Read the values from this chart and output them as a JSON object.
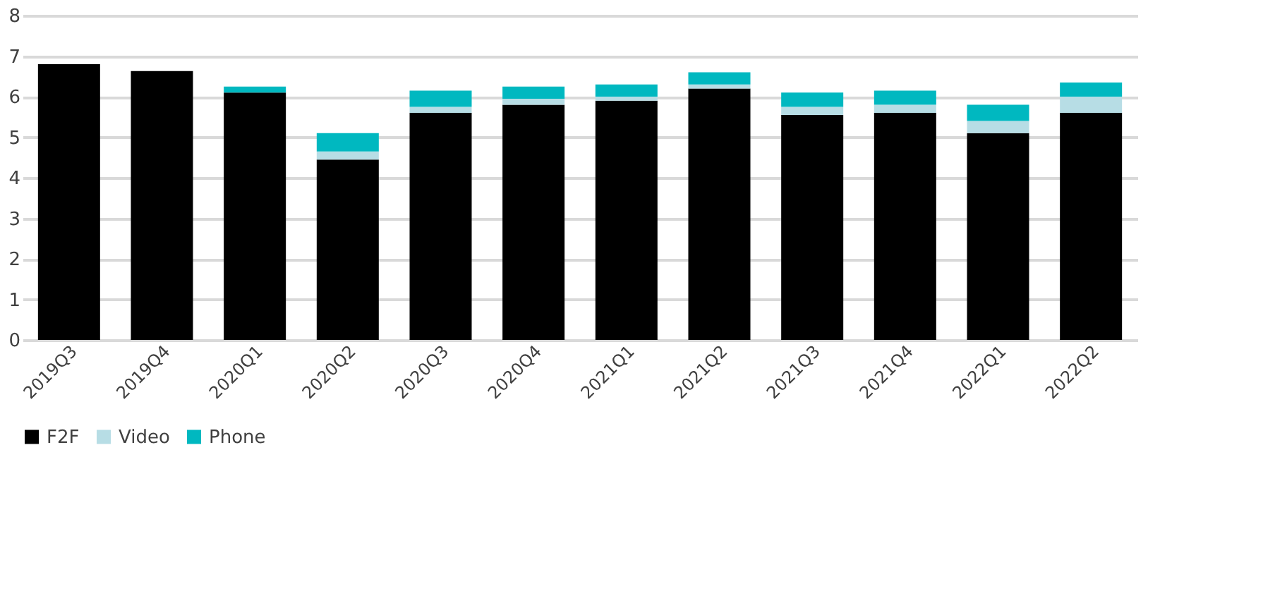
{
  "chart_data": {
    "type": "bar",
    "stacked": true,
    "categories": [
      "2019Q3",
      "2019Q4",
      "2020Q1",
      "2020Q2",
      "2020Q3",
      "2020Q4",
      "2021Q1",
      "2021Q2",
      "2021Q3",
      "2021Q4",
      "2022Q1",
      "2022Q2"
    ],
    "series": [
      {
        "name": "F2F",
        "color": "#000000",
        "values": [
          6.8,
          6.63,
          6.1,
          4.45,
          5.6,
          5.8,
          5.9,
          6.2,
          5.55,
          5.6,
          5.1,
          5.6
        ]
      },
      {
        "name": "Video",
        "color": "#b7dde5",
        "values": [
          0,
          0,
          0,
          0.2,
          0.15,
          0.15,
          0.1,
          0.1,
          0.2,
          0.2,
          0.3,
          0.4
        ]
      },
      {
        "name": "Phone",
        "color": "#00b8c0",
        "values": [
          0,
          0,
          0.15,
          0.45,
          0.4,
          0.3,
          0.3,
          0.3,
          0.35,
          0.35,
          0.4,
          0.35
        ]
      }
    ],
    "ylim": [
      0,
      8
    ],
    "yticks": [
      0,
      1,
      2,
      3,
      4,
      5,
      6,
      7,
      8
    ],
    "grid": "y",
    "legend": "bottom"
  }
}
